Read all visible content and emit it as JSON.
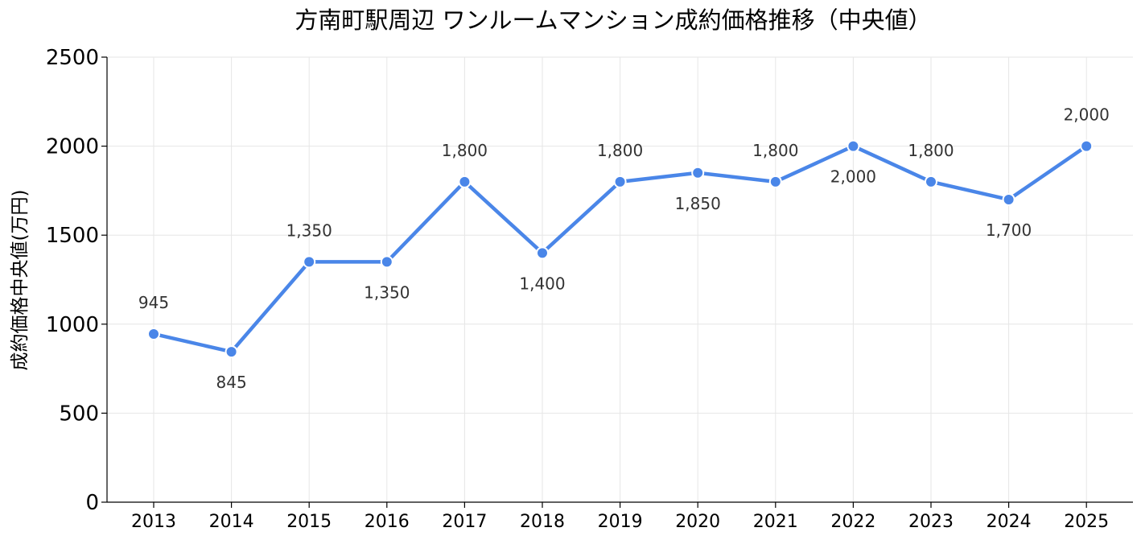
{
  "chart_data": {
    "type": "line",
    "title": "方南町駅周辺 ワンルームマンション成約価格推移（中央値）",
    "xlabel": "",
    "ylabel": "成約価格中央値(万円)",
    "categories": [
      "2013",
      "2014",
      "2015",
      "2016",
      "2017",
      "2018",
      "2019",
      "2020",
      "2021",
      "2022",
      "2023",
      "2024",
      "2025"
    ],
    "series": [
      {
        "values": [
          945,
          845,
          1350,
          1350,
          1800,
          1400,
          1800,
          1850,
          1800,
          2000,
          1800,
          1700,
          2000
        ],
        "data_labels": [
          "945",
          "845",
          "1,350",
          "1,350",
          "1,800",
          "1,400",
          "1,800",
          "1,850",
          "1,800",
          "2,000",
          "1,800",
          "1,700",
          "2,000"
        ],
        "label_positions": [
          "above",
          "below",
          "above",
          "below",
          "above",
          "below",
          "above",
          "below",
          "above",
          "below",
          "above",
          "below",
          "above"
        ]
      }
    ],
    "ylim": [
      0,
      2500
    ],
    "yticks": [
      0,
      500,
      1000,
      1500,
      2000,
      2500
    ],
    "grid": true,
    "line_color": "#4a86e8",
    "marker_edge_color": "#ffffff"
  }
}
